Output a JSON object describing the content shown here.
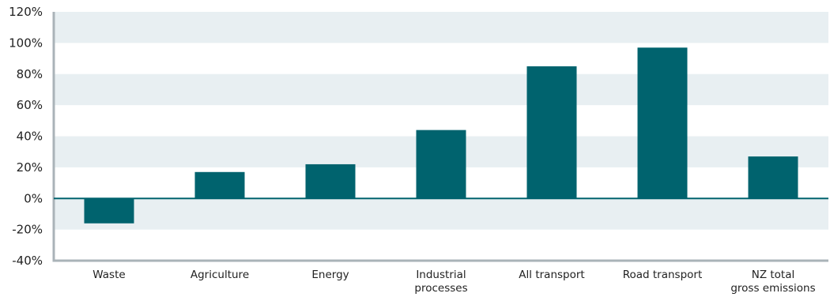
{
  "chart_data": {
    "type": "bar",
    "categories": [
      [
        "Waste"
      ],
      [
        "Agriculture"
      ],
      [
        "Energy"
      ],
      [
        "Industrial",
        "processes"
      ],
      [
        "All transport"
      ],
      [
        "Road transport"
      ],
      [
        "NZ total",
        "gross emissions"
      ]
    ],
    "values": [
      -16,
      17,
      22,
      44,
      85,
      97,
      27
    ],
    "ylim": [
      -40,
      120
    ],
    "yticks": [
      -40,
      -20,
      0,
      20,
      40,
      60,
      80,
      100,
      120
    ],
    "tick_suffix": "%",
    "grid": "alternating horizontal bands",
    "title": "",
    "xlabel": "",
    "ylabel": ""
  },
  "colors": {
    "bar": "#00636e",
    "band": "#e8eff2",
    "axis": "#aab3b8",
    "zero_line": "#00636e"
  }
}
